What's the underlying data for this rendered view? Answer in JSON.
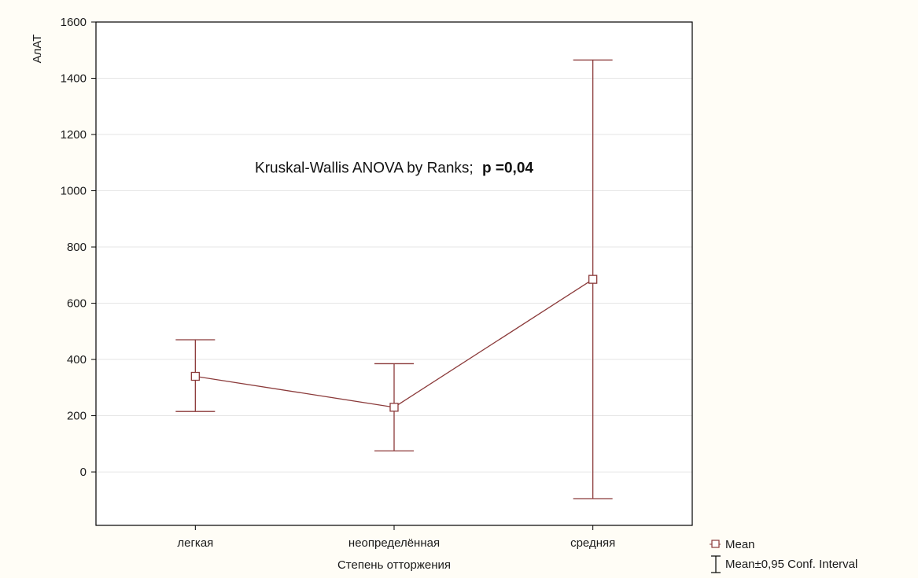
{
  "colors": {
    "page_background": "#fffdf6",
    "plot_background": "#ffffff",
    "series": "#8b3a3a",
    "grid": "#e6e6e6",
    "axis": "#000000"
  },
  "chart_data": {
    "type": "line",
    "title": "",
    "xlabel": "Степень отторжения",
    "ylabel": "АлАТ",
    "categories": [
      "легкая",
      "неопределённая",
      "средняя"
    ],
    "series": [
      {
        "name": "Mean",
        "values": [
          340,
          230,
          685
        ],
        "ci_lower": [
          215,
          75,
          -95
        ],
        "ci_upper": [
          470,
          385,
          1465
        ]
      }
    ],
    "ylim": [
      -190,
      1600
    ],
    "yticks": [
      0,
      200,
      400,
      600,
      800,
      1000,
      1200,
      1400,
      1600
    ],
    "grid": true,
    "annotation": {
      "text": "Kruskal-Wallis ANOVA by Ranks;",
      "bold_text": "p =0,04",
      "position_value": {
        "category_index": 1,
        "y": 1065
      }
    },
    "legend": {
      "placement": "bottom-right outside",
      "entries": [
        {
          "symbol": "square-marker",
          "label": "Mean"
        },
        {
          "symbol": "error-bar",
          "label": "Mean±0,95 Conf. Interval"
        }
      ]
    }
  }
}
